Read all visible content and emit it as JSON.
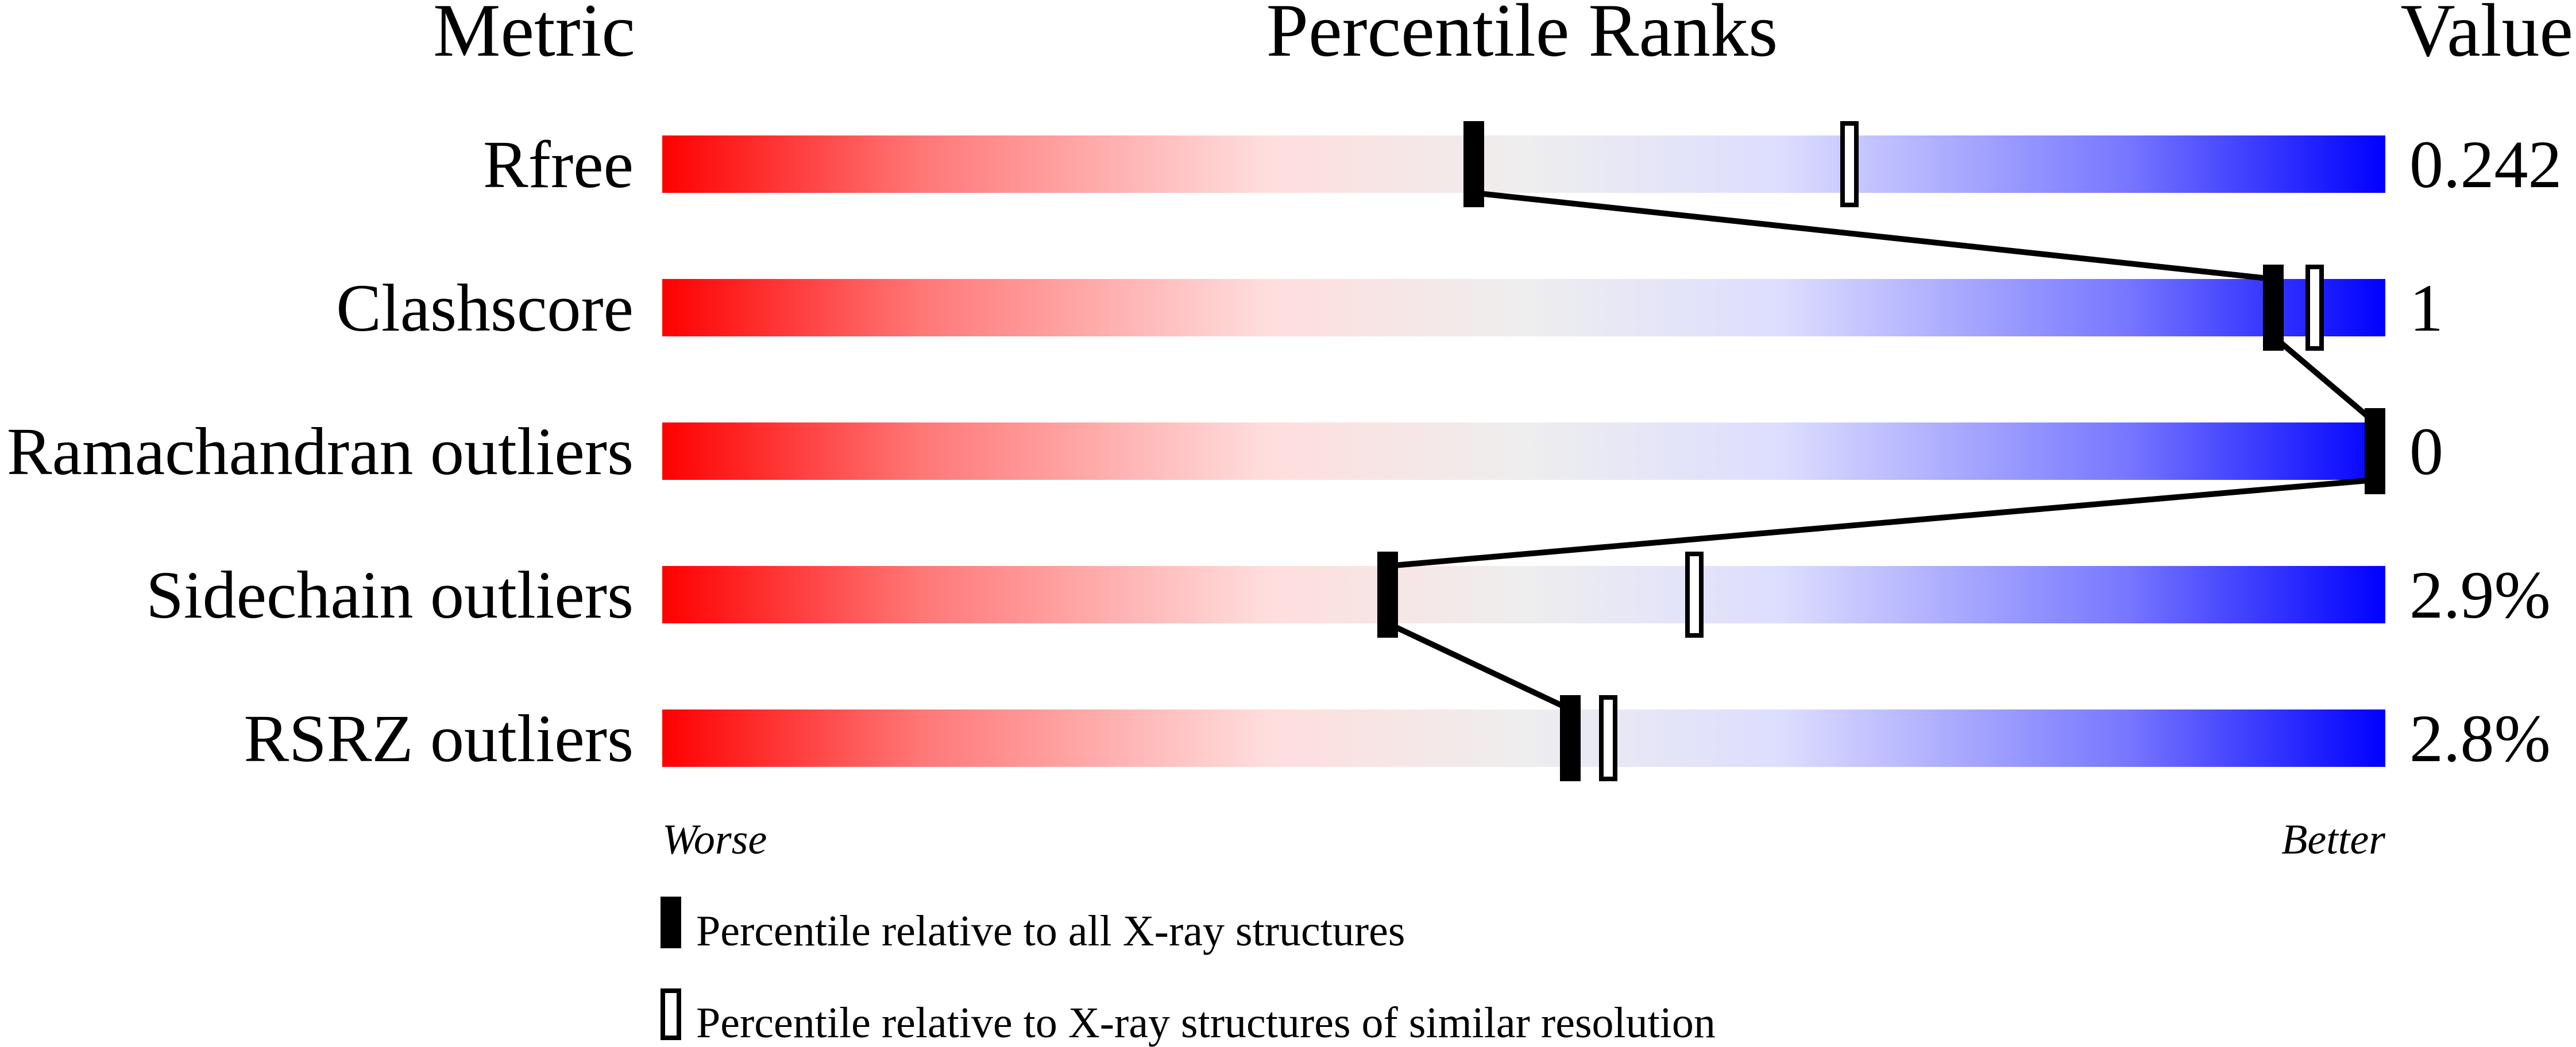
{
  "chart_data": {
    "type": "percentile-bars",
    "headers": {
      "metric": "Metric",
      "ranks": "Percentile Ranks",
      "value": "Value"
    },
    "xlim": [
      0,
      100
    ],
    "axis_labels": {
      "left": "Worse",
      "right": "Better"
    },
    "gradient_colors": [
      "#ff0000",
      "#ffdddd",
      "#eeeeee",
      "#ddddff",
      "#0000ff"
    ],
    "metrics": [
      {
        "name": "Rfree",
        "value": "0.242",
        "percentile_all": 47.1,
        "percentile_similar": 68.9
      },
      {
        "name": "Clashscore",
        "value": "1",
        "percentile_all": 93.5,
        "percentile_similar": 95.9
      },
      {
        "name": "Ramachandran outliers",
        "value": "0",
        "percentile_all": 100,
        "percentile_similar": 100
      },
      {
        "name": "Sidechain outliers",
        "value": "2.9%",
        "percentile_all": 42.1,
        "percentile_similar": 59.9
      },
      {
        "name": "RSRZ outliers",
        "value": "2.8%",
        "percentile_all": 52.7,
        "percentile_similar": 54.9
      }
    ],
    "legend": [
      {
        "marker": "filled",
        "label": "Percentile relative to all X-ray structures"
      },
      {
        "marker": "hollow",
        "label": "Percentile relative to X-ray structures of similar resolution"
      }
    ]
  }
}
